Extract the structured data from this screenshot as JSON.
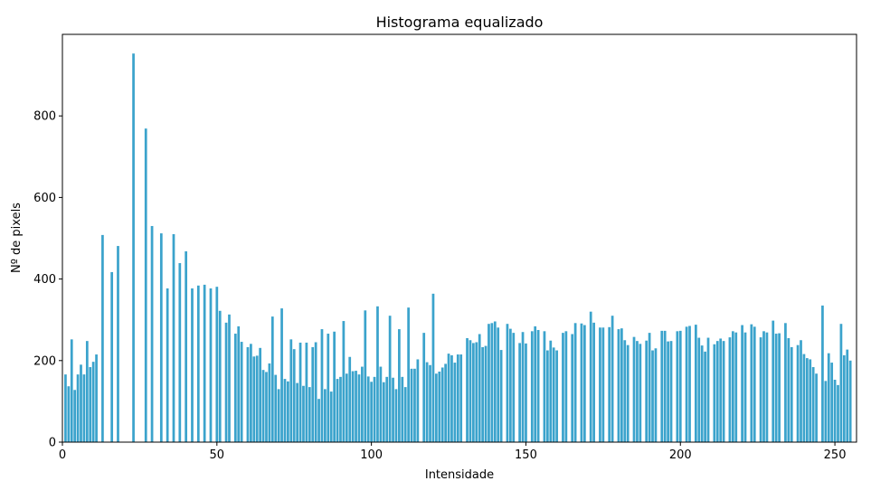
{
  "chart_data": {
    "type": "bar",
    "title": "Histograma equalizado",
    "xlabel": "Intensidade",
    "ylabel": "Nº de pixels",
    "color": "#3ba3cc",
    "grid": false,
    "x": [
      0,
      1,
      2,
      3,
      4,
      5,
      6,
      7,
      8,
      9,
      10,
      11,
      12,
      13,
      14,
      15,
      16,
      17,
      18,
      19,
      20,
      21,
      22,
      23,
      24,
      25,
      26,
      27,
      28,
      29,
      30,
      31,
      32,
      33,
      34,
      35,
      36,
      37,
      38,
      39,
      40,
      41,
      42,
      43,
      44,
      45,
      46,
      47,
      48,
      49,
      50,
      51,
      52,
      53,
      54,
      55,
      56,
      57,
      58,
      59,
      60,
      61,
      62,
      63,
      64,
      65,
      66,
      67,
      68,
      69,
      70,
      71,
      72,
      73,
      74,
      75,
      76,
      77,
      78,
      79,
      80,
      81,
      82,
      83,
      84,
      85,
      86,
      87,
      88,
      89,
      90,
      91,
      92,
      93,
      94,
      95,
      96,
      97,
      98,
      99,
      100,
      101,
      102,
      103,
      104,
      105,
      106,
      107,
      108,
      109,
      110,
      111,
      112,
      113,
      114,
      115,
      116,
      117,
      118,
      119,
      120,
      121,
      122,
      123,
      124,
      125,
      126,
      127,
      128,
      129,
      130,
      131,
      132,
      133,
      134,
      135,
      136,
      137,
      138,
      139,
      140,
      141,
      142,
      143,
      144,
      145,
      146,
      147,
      148,
      149,
      150,
      151,
      152,
      153,
      154,
      155,
      156,
      157,
      158,
      159,
      160,
      161,
      162,
      163,
      164,
      165,
      166,
      167,
      168,
      169,
      170,
      171,
      172,
      173,
      174,
      175,
      176,
      177,
      178,
      179,
      180,
      181,
      182,
      183,
      184,
      185,
      186,
      187,
      188,
      189,
      190,
      191,
      192,
      193,
      194,
      195,
      196,
      197,
      198,
      199,
      200,
      201,
      202,
      203,
      204,
      205,
      206,
      207,
      208,
      209,
      210,
      211,
      212,
      213,
      214,
      215,
      216,
      217,
      218,
      219,
      220,
      221,
      222,
      223,
      224,
      225,
      226,
      227,
      228,
      229,
      230,
      231,
      232,
      233,
      234,
      235,
      236,
      237,
      238,
      239,
      240,
      241,
      242,
      243,
      244,
      245,
      246,
      247,
      248,
      249,
      250,
      251,
      252,
      253,
      254,
      255
    ],
    "values": [
      0,
      166,
      137,
      252,
      128,
      166,
      190,
      166,
      248,
      184,
      197,
      215,
      0,
      508,
      0,
      0,
      417,
      0,
      481,
      0,
      0,
      0,
      0,
      953,
      0,
      0,
      0,
      769,
      0,
      530,
      0,
      0,
      512,
      0,
      377,
      0,
      510,
      0,
      439,
      0,
      468,
      0,
      377,
      0,
      384,
      0,
      386,
      0,
      377,
      0,
      381,
      322,
      0,
      293,
      313,
      0,
      266,
      284,
      246,
      0,
      233,
      241,
      210,
      212,
      231,
      177,
      172,
      193,
      308,
      165,
      130,
      328,
      155,
      149,
      252,
      228,
      145,
      244,
      138,
      244,
      135,
      233,
      245,
      106,
      277,
      130,
      266,
      124,
      271,
      155,
      160,
      297,
      168,
      209,
      174,
      175,
      166,
      185,
      323,
      161,
      148,
      160,
      333,
      185,
      147,
      160,
      310,
      158,
      130,
      277,
      160,
      135,
      330,
      180,
      180,
      203,
      0,
      268,
      196,
      189,
      364,
      168,
      173,
      183,
      192,
      217,
      213,
      195,
      215,
      215,
      0,
      255,
      250,
      243,
      245,
      265,
      233,
      236,
      290,
      292,
      296,
      281,
      226,
      0,
      290,
      278,
      268,
      0,
      243,
      270,
      242,
      0,
      272,
      284,
      275,
      0,
      272,
      225,
      249,
      232,
      225,
      0,
      268,
      272,
      0,
      265,
      292,
      0,
      291,
      287,
      0,
      320,
      293,
      0,
      281,
      281,
      0,
      282,
      310,
      0,
      277,
      279,
      250,
      238,
      0,
      258,
      248,
      241,
      0,
      249,
      268,
      225,
      230,
      0,
      273,
      273,
      247,
      248,
      0,
      272,
      273,
      0,
      283,
      285,
      0,
      288,
      256,
      237,
      222,
      256,
      0,
      240,
      248,
      254,
      248,
      0,
      257,
      272,
      269,
      0,
      287,
      269,
      0,
      289,
      283,
      0,
      257,
      272,
      269,
      0,
      298,
      266,
      267,
      0,
      292,
      255,
      233,
      0,
      238,
      250,
      216,
      206,
      203,
      184,
      168,
      0,
      335,
      150,
      218,
      195,
      153,
      140,
      290,
      213,
      227,
      200
    ],
    "xlim": [
      0,
      257
    ],
    "xticks": [
      0,
      50,
      100,
      150,
      200,
      250
    ],
    "ylim": [
      0,
      1000
    ],
    "yticks": [
      0,
      200,
      400,
      600,
      800
    ]
  }
}
